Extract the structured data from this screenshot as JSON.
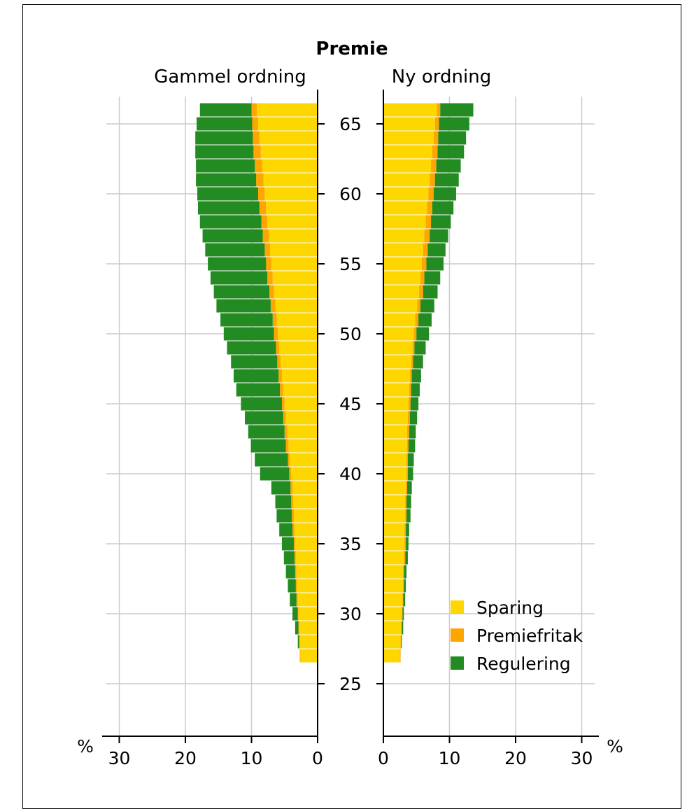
{
  "chart_data": {
    "type": "bar",
    "orientation": "horizontal",
    "stacked": true,
    "title": "Premie",
    "panels": [
      {
        "name": "Gammel ordning",
        "direction": "left"
      },
      {
        "name": "Ny ordning",
        "direction": "right"
      }
    ],
    "age_axis": {
      "range": [
        22,
        67
      ],
      "ticks": [
        25,
        30,
        35,
        40,
        45,
        50,
        55,
        60,
        65
      ]
    },
    "value_axis": {
      "unit": "%",
      "range": [
        0,
        32
      ],
      "ticks": [
        0,
        10,
        20,
        30
      ]
    },
    "grid": true,
    "legend_position": "bottom-right",
    "legend": [
      "Sparing",
      "Premiefritak",
      "Regulering"
    ],
    "colors": {
      "Sparing": "#FFD700",
      "Premiefritak": "#FFA500",
      "Regulering": "#228B22"
    },
    "ages": [
      27,
      28,
      29,
      30,
      31,
      32,
      33,
      34,
      35,
      36,
      37,
      38,
      39,
      40,
      41,
      42,
      43,
      44,
      45,
      46,
      47,
      48,
      49,
      50,
      51,
      52,
      53,
      54,
      55,
      56,
      57,
      58,
      59,
      60,
      61,
      62,
      63,
      64,
      65,
      66
    ],
    "old": {
      "Sparing": [
        2.6,
        2.7,
        2.8,
        2.9,
        3.0,
        3.1,
        3.2,
        3.3,
        3.4,
        3.5,
        3.6,
        3.7,
        3.8,
        4.0,
        4.2,
        4.4,
        4.6,
        4.8,
        5.0,
        5.2,
        5.4,
        5.6,
        5.8,
        6.0,
        6.2,
        6.4,
        6.6,
        6.8,
        7.0,
        7.2,
        7.4,
        7.6,
        7.8,
        8.0,
        8.2,
        8.4,
        8.6,
        8.8,
        9.0,
        9.2
      ],
      "Premiefritak": [
        0.1,
        0.1,
        0.1,
        0.1,
        0.2,
        0.2,
        0.2,
        0.2,
        0.2,
        0.3,
        0.3,
        0.3,
        0.3,
        0.3,
        0.3,
        0.4,
        0.4,
        0.4,
        0.4,
        0.5,
        0.5,
        0.5,
        0.5,
        0.6,
        0.6,
        0.7,
        0.7,
        0.8,
        0.8,
        0.8,
        0.9,
        0.9,
        1.0,
        1.0,
        1.1,
        1.1,
        1.1,
        1.0,
        0.9,
        0.8
      ],
      "Regulering": [
        0.0,
        0.2,
        0.5,
        0.8,
        1.0,
        1.2,
        1.4,
        1.6,
        1.8,
        2.0,
        2.3,
        2.4,
        2.9,
        4.4,
        5.0,
        5.3,
        5.5,
        5.8,
        6.2,
        6.6,
        6.8,
        7.0,
        7.4,
        7.6,
        7.9,
        8.2,
        8.4,
        8.6,
        8.8,
        9.0,
        9.1,
        9.3,
        9.3,
        9.2,
        9.1,
        8.9,
        8.8,
        8.7,
        8.4,
        7.8
      ]
    },
    "new": {
      "Sparing": [
        2.5,
        2.6,
        2.7,
        2.8,
        2.9,
        3.0,
        3.0,
        3.1,
        3.2,
        3.2,
        3.3,
        3.3,
        3.4,
        3.5,
        3.5,
        3.6,
        3.6,
        3.7,
        3.8,
        3.9,
        4.0,
        4.2,
        4.4,
        4.6,
        4.8,
        5.1,
        5.4,
        5.6,
        5.8,
        6.0,
        6.2,
        6.4,
        6.6,
        6.8,
        7.0,
        7.2,
        7.4,
        7.6,
        7.8,
        8.1
      ],
      "Premiefritak": [
        0.1,
        0.1,
        0.1,
        0.1,
        0.1,
        0.1,
        0.1,
        0.2,
        0.2,
        0.2,
        0.2,
        0.2,
        0.2,
        0.2,
        0.2,
        0.2,
        0.3,
        0.3,
        0.3,
        0.3,
        0.3,
        0.3,
        0.3,
        0.4,
        0.5,
        0.5,
        0.6,
        0.6,
        0.7,
        0.7,
        0.8,
        0.8,
        0.8,
        0.8,
        0.8,
        0.8,
        0.8,
        0.7,
        0.6,
        0.5
      ],
      "Regulering": [
        0.0,
        0.1,
        0.2,
        0.2,
        0.3,
        0.3,
        0.4,
        0.4,
        0.4,
        0.5,
        0.6,
        0.7,
        0.7,
        0.8,
        0.9,
        1.0,
        1.0,
        1.1,
        1.2,
        1.3,
        1.4,
        1.5,
        1.7,
        1.9,
        2.0,
        2.1,
        2.2,
        2.4,
        2.6,
        2.7,
        2.8,
        3.0,
        3.2,
        3.4,
        3.6,
        3.7,
        4.0,
        4.2,
        4.6,
        5.0
      ]
    }
  }
}
